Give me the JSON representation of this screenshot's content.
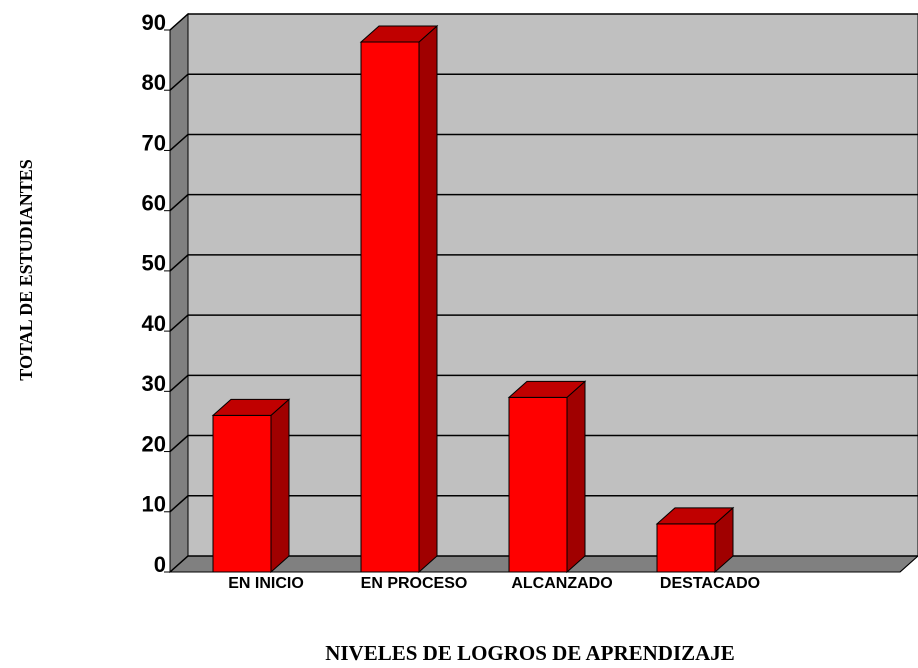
{
  "chart_data": {
    "type": "bar3d",
    "categories": [
      "EN INICIO",
      "EN PROCESO",
      "ALCANZADO",
      "DESTACADO"
    ],
    "values": [
      26,
      88,
      29,
      8
    ],
    "color": "#ff0000",
    "ylim": [
      0,
      90
    ],
    "yticks": [
      0,
      10,
      20,
      30,
      40,
      50,
      60,
      70,
      80,
      90
    ],
    "grid": true,
    "xlabel": "NIVELES DE LOGROS  DE  APRENDIZAJE",
    "ylabel": "TOTAL DE ESTUDIANTES"
  }
}
